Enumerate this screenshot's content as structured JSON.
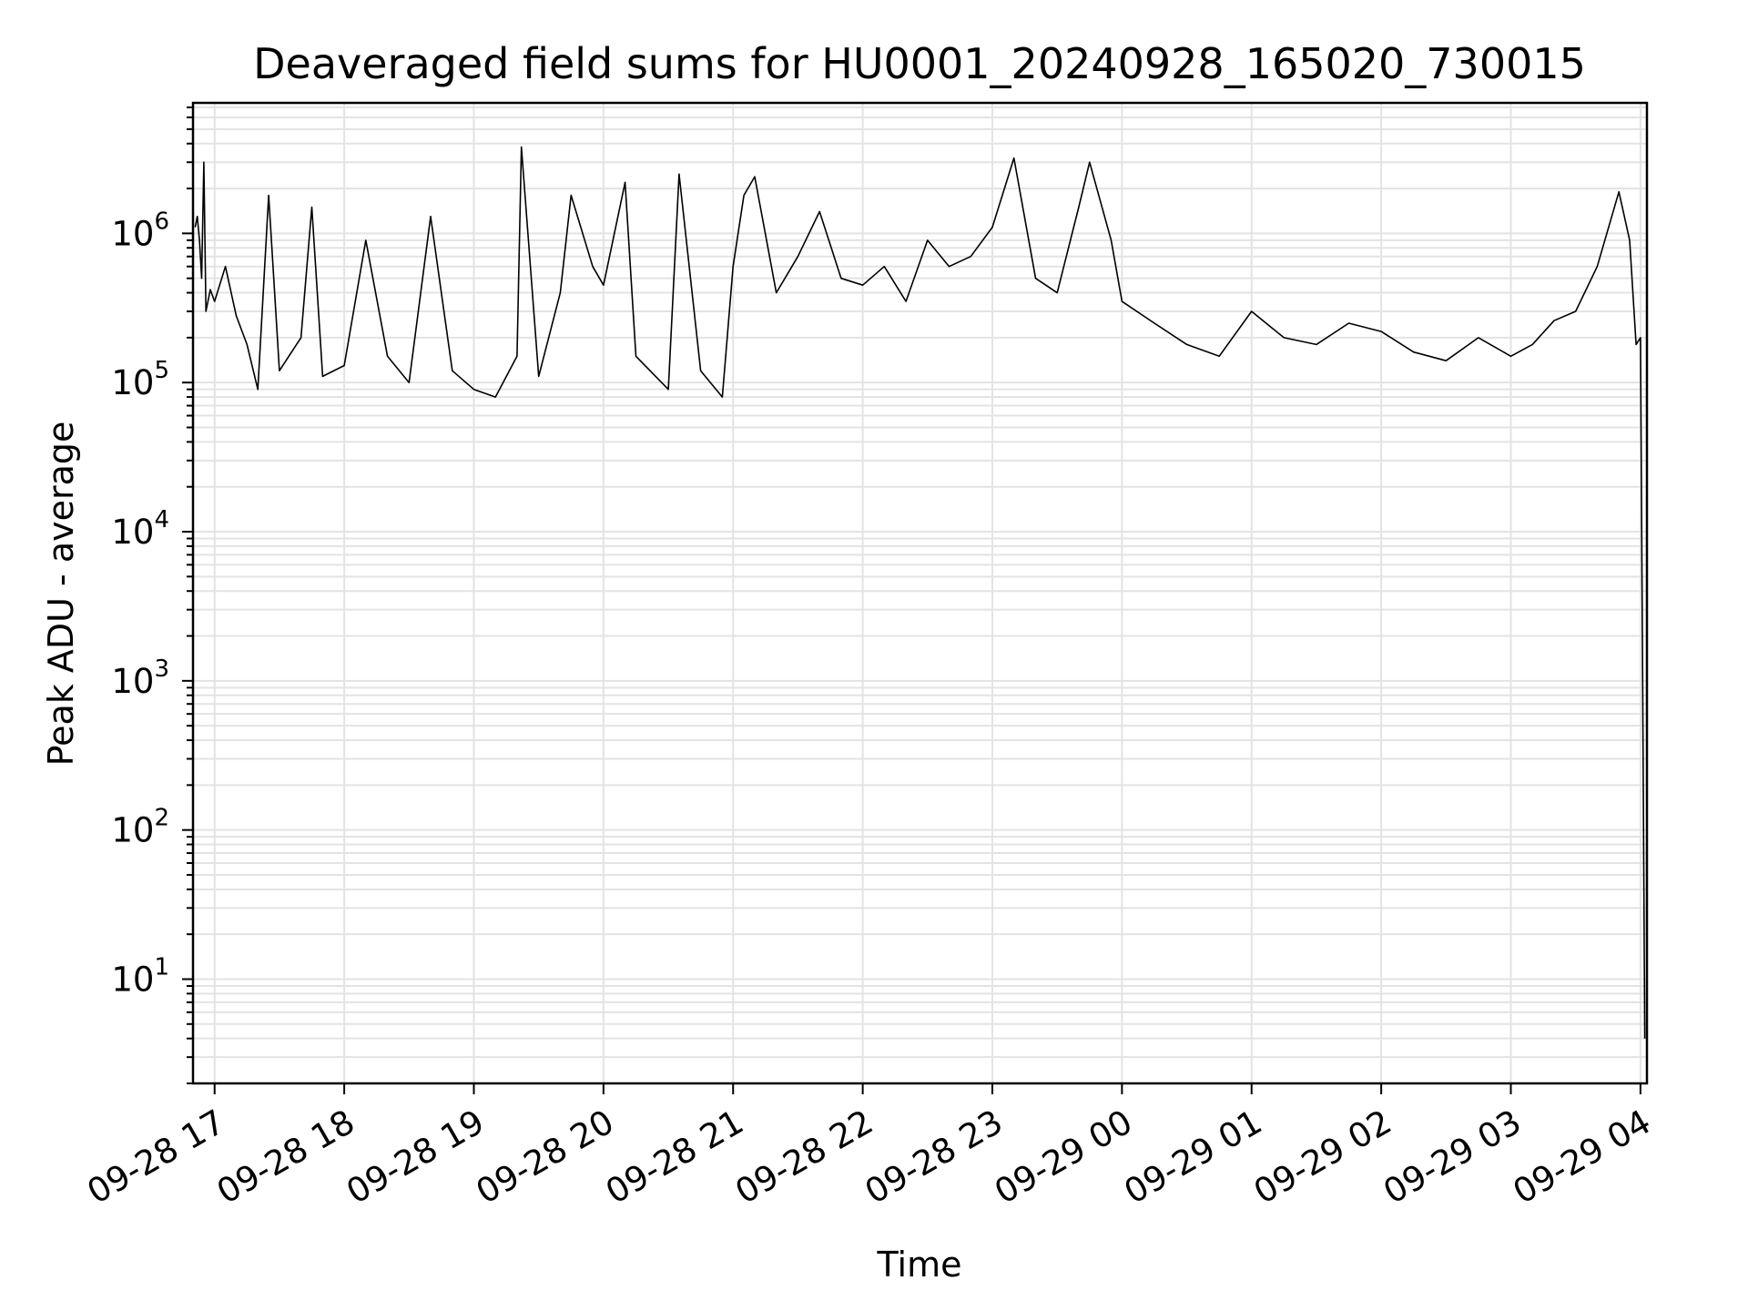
{
  "chart_data": {
    "type": "line",
    "title": "Deaveraged field sums for HU0001_20240928_165020_730015",
    "xlabel": "Time",
    "ylabel": "Peak ADU - average",
    "x_scale": "time",
    "y_scale": "log",
    "xlim": [
      "09-28 16:50",
      "09-29 04:03"
    ],
    "ylim": [
      2,
      7500000
    ],
    "grid": true,
    "line_color": "#000000",
    "grid_color": "#e3e3e3",
    "x_ticks": [
      {
        "time": "09-28 17:00",
        "label": "09-28 17"
      },
      {
        "time": "09-28 18:00",
        "label": "09-28 18"
      },
      {
        "time": "09-28 19:00",
        "label": "09-28 19"
      },
      {
        "time": "09-28 20:00",
        "label": "09-28 20"
      },
      {
        "time": "09-28 21:00",
        "label": "09-28 21"
      },
      {
        "time": "09-28 22:00",
        "label": "09-28 22"
      },
      {
        "time": "09-28 23:00",
        "label": "09-28 23"
      },
      {
        "time": "09-29 00:00",
        "label": "09-29 00"
      },
      {
        "time": "09-29 01:00",
        "label": "09-29 01"
      },
      {
        "time": "09-29 02:00",
        "label": "09-29 02"
      },
      {
        "time": "09-29 03:00",
        "label": "09-29 03"
      },
      {
        "time": "09-29 04:00",
        "label": "09-29 04"
      }
    ],
    "y_ticks": [
      {
        "value": 10,
        "base": "10",
        "exp": "1"
      },
      {
        "value": 100,
        "base": "10",
        "exp": "2"
      },
      {
        "value": 1000,
        "base": "10",
        "exp": "3"
      },
      {
        "value": 10000,
        "base": "10",
        "exp": "4"
      },
      {
        "value": 100000,
        "base": "10",
        "exp": "5"
      },
      {
        "value": 1000000,
        "base": "10",
        "exp": "6"
      }
    ],
    "series": [
      {
        "points": [
          [
            "09-28 16:51",
            1100000
          ],
          [
            "09-28 16:52",
            1300000
          ],
          [
            "09-28 16:53",
            900000
          ],
          [
            "09-28 16:54",
            500000
          ],
          [
            "09-28 16:55",
            3000000
          ],
          [
            "09-28 16:56",
            300000
          ],
          [
            "09-28 16:58",
            420000
          ],
          [
            "09-28 17:00",
            350000
          ],
          [
            "09-28 17:05",
            600000
          ],
          [
            "09-28 17:10",
            280000
          ],
          [
            "09-28 17:15",
            180000
          ],
          [
            "09-28 17:20",
            90000
          ],
          [
            "09-28 17:25",
            1800000
          ],
          [
            "09-28 17:30",
            120000
          ],
          [
            "09-28 17:40",
            200000
          ],
          [
            "09-28 17:45",
            1500000
          ],
          [
            "09-28 17:50",
            110000
          ],
          [
            "09-28 18:00",
            130000
          ],
          [
            "09-28 18:10",
            900000
          ],
          [
            "09-28 18:20",
            150000
          ],
          [
            "09-28 18:30",
            100000
          ],
          [
            "09-28 18:40",
            1300000
          ],
          [
            "09-28 18:50",
            120000
          ],
          [
            "09-28 19:00",
            90000
          ],
          [
            "09-28 19:10",
            80000
          ],
          [
            "09-28 19:20",
            150000
          ],
          [
            "09-28 19:22",
            3800000
          ],
          [
            "09-28 19:30",
            110000
          ],
          [
            "09-28 19:40",
            400000
          ],
          [
            "09-28 19:45",
            1800000
          ],
          [
            "09-28 19:55",
            600000
          ],
          [
            "09-28 20:00",
            450000
          ],
          [
            "09-28 20:10",
            2200000
          ],
          [
            "09-28 20:15",
            150000
          ],
          [
            "09-28 20:30",
            90000
          ],
          [
            "09-28 20:35",
            2500000
          ],
          [
            "09-28 20:45",
            120000
          ],
          [
            "09-28 20:55",
            80000
          ],
          [
            "09-28 21:00",
            600000
          ],
          [
            "09-28 21:05",
            1800000
          ],
          [
            "09-28 21:10",
            2400000
          ],
          [
            "09-28 21:20",
            400000
          ],
          [
            "09-28 21:30",
            700000
          ],
          [
            "09-28 21:40",
            1400000
          ],
          [
            "09-28 21:50",
            500000
          ],
          [
            "09-28 22:00",
            450000
          ],
          [
            "09-28 22:10",
            600000
          ],
          [
            "09-28 22:20",
            350000
          ],
          [
            "09-28 22:30",
            900000
          ],
          [
            "09-28 22:40",
            600000
          ],
          [
            "09-28 22:50",
            700000
          ],
          [
            "09-28 23:00",
            1100000
          ],
          [
            "09-28 23:10",
            3200000
          ],
          [
            "09-28 23:20",
            500000
          ],
          [
            "09-28 23:30",
            400000
          ],
          [
            "09-28 23:40",
            1500000
          ],
          [
            "09-28 23:45",
            3000000
          ],
          [
            "09-28 23:55",
            900000
          ],
          [
            "09-29 00:00",
            350000
          ],
          [
            "09-29 00:15",
            250000
          ],
          [
            "09-29 00:30",
            180000
          ],
          [
            "09-29 00:45",
            150000
          ],
          [
            "09-29 01:00",
            300000
          ],
          [
            "09-29 01:15",
            200000
          ],
          [
            "09-29 01:30",
            180000
          ],
          [
            "09-29 01:45",
            250000
          ],
          [
            "09-29 02:00",
            220000
          ],
          [
            "09-29 02:15",
            160000
          ],
          [
            "09-29 02:30",
            140000
          ],
          [
            "09-29 02:45",
            200000
          ],
          [
            "09-29 03:00",
            150000
          ],
          [
            "09-29 03:10",
            180000
          ],
          [
            "09-29 03:20",
            260000
          ],
          [
            "09-29 03:30",
            300000
          ],
          [
            "09-29 03:40",
            600000
          ],
          [
            "09-29 03:50",
            1900000
          ],
          [
            "09-29 03:55",
            900000
          ],
          [
            "09-29 03:58",
            180000
          ],
          [
            "09-29 04:00",
            200000
          ],
          [
            "09-29 04:01",
            1000
          ],
          [
            "09-29 04:02",
            4
          ]
        ]
      }
    ]
  }
}
